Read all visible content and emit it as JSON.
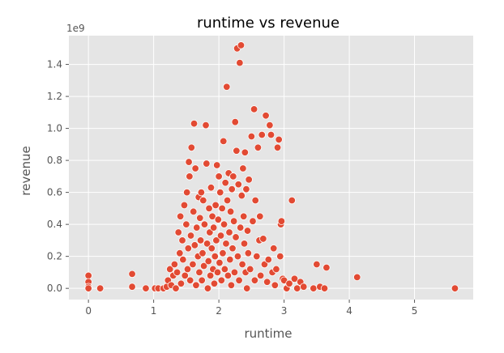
{
  "chart_data": {
    "type": "scatter",
    "title": "runtime vs revenue",
    "xlabel": "runtime",
    "ylabel": "revenue",
    "y_offset_label": "1e9",
    "xlim": [
      -0.3,
      5.9
    ],
    "ylim": [
      -0.07,
      1.58
    ],
    "xticks": [
      0,
      1,
      2,
      3,
      4,
      5
    ],
    "yticks": [
      0.0,
      0.2,
      0.4,
      0.6,
      0.8,
      1.0,
      1.2,
      1.4
    ],
    "ytick_labels": [
      "0.0",
      "0.2",
      "0.4",
      "0.6",
      "0.8",
      "1.0",
      "1.2",
      "1.4"
    ],
    "grid": true,
    "style": "ggplot",
    "colors": {
      "marker": "#E24A33",
      "marker_edge": "#ffffff",
      "panel": "#E5E5E5",
      "grid": "#ffffff"
    },
    "y_unit_multiplier": 1000000000,
    "points": [
      [
        0.0,
        0.08
      ],
      [
        0.0,
        0.04
      ],
      [
        0.0,
        0.01
      ],
      [
        0.0,
        0.0
      ],
      [
        0.18,
        0.0
      ],
      [
        0.67,
        0.09
      ],
      [
        0.67,
        0.01
      ],
      [
        0.88,
        0.0
      ],
      [
        1.02,
        0.0
      ],
      [
        1.07,
        0.0
      ],
      [
        1.15,
        0.0
      ],
      [
        1.2,
        0.01
      ],
      [
        1.22,
        0.05
      ],
      [
        1.25,
        0.12
      ],
      [
        1.27,
        0.02
      ],
      [
        1.3,
        0.08
      ],
      [
        1.32,
        0.15
      ],
      [
        1.34,
        0.0
      ],
      [
        1.36,
        0.1
      ],
      [
        1.38,
        0.35
      ],
      [
        1.4,
        0.22
      ],
      [
        1.41,
        0.45
      ],
      [
        1.42,
        0.03
      ],
      [
        1.44,
        0.3
      ],
      [
        1.45,
        0.18
      ],
      [
        1.47,
        0.52
      ],
      [
        1.48,
        0.08
      ],
      [
        1.5,
        0.4
      ],
      [
        1.51,
        0.6
      ],
      [
        1.52,
        0.12
      ],
      [
        1.53,
        0.25
      ],
      [
        1.54,
        0.79
      ],
      [
        1.55,
        0.7
      ],
      [
        1.56,
        0.05
      ],
      [
        1.57,
        0.33
      ],
      [
        1.58,
        0.88
      ],
      [
        1.6,
        0.15
      ],
      [
        1.61,
        0.48
      ],
      [
        1.62,
        1.03
      ],
      [
        1.63,
        0.27
      ],
      [
        1.64,
        0.75
      ],
      [
        1.65,
        0.02
      ],
      [
        1.66,
        0.38
      ],
      [
        1.68,
        0.2
      ],
      [
        1.69,
        0.57
      ],
      [
        1.7,
        0.1
      ],
      [
        1.71,
        0.44
      ],
      [
        1.72,
        0.3
      ],
      [
        1.73,
        0.6
      ],
      [
        1.74,
        0.05
      ],
      [
        1.75,
        0.22
      ],
      [
        1.76,
        0.55
      ],
      [
        1.77,
        0.14
      ],
      [
        1.78,
        0.4
      ],
      [
        1.8,
        1.02
      ],
      [
        1.81,
        0.78
      ],
      [
        1.82,
        0.28
      ],
      [
        1.83,
        0.0
      ],
      [
        1.84,
        0.17
      ],
      [
        1.85,
        0.5
      ],
      [
        1.86,
        0.35
      ],
      [
        1.87,
        0.08
      ],
      [
        1.88,
        0.63
      ],
      [
        1.89,
        0.25
      ],
      [
        1.9,
        0.45
      ],
      [
        1.91,
        0.12
      ],
      [
        1.92,
        0.38
      ],
      [
        1.93,
        0.03
      ],
      [
        1.94,
        0.2
      ],
      [
        1.95,
        0.52
      ],
      [
        1.96,
        0.3
      ],
      [
        1.97,
        0.77
      ],
      [
        1.98,
        0.1
      ],
      [
        1.99,
        0.43
      ],
      [
        2.0,
        0.7
      ],
      [
        2.01,
        0.16
      ],
      [
        2.02,
        0.6
      ],
      [
        2.03,
        0.33
      ],
      [
        2.04,
        0.05
      ],
      [
        2.05,
        0.5
      ],
      [
        2.06,
        0.22
      ],
      [
        2.07,
        0.92
      ],
      [
        2.08,
        0.4
      ],
      [
        2.09,
        0.12
      ],
      [
        2.1,
        0.66
      ],
      [
        2.11,
        0.28
      ],
      [
        2.12,
        1.26
      ],
      [
        2.13,
        0.55
      ],
      [
        2.14,
        0.08
      ],
      [
        2.15,
        0.72
      ],
      [
        2.16,
        0.35
      ],
      [
        2.17,
        0.18
      ],
      [
        2.18,
        0.48
      ],
      [
        2.19,
        0.02
      ],
      [
        2.2,
        0.62
      ],
      [
        2.21,
        0.25
      ],
      [
        2.22,
        0.7
      ],
      [
        2.23,
        0.42
      ],
      [
        2.24,
        0.1
      ],
      [
        2.25,
        1.04
      ],
      [
        2.26,
        0.32
      ],
      [
        2.27,
        0.86
      ],
      [
        2.28,
        1.5
      ],
      [
        2.29,
        0.2
      ],
      [
        2.3,
        0.65
      ],
      [
        2.31,
        0.05
      ],
      [
        2.32,
        1.41
      ],
      [
        2.33,
        0.38
      ],
      [
        2.34,
        1.52
      ],
      [
        2.35,
        0.58
      ],
      [
        2.36,
        0.15
      ],
      [
        2.37,
        0.75
      ],
      [
        2.38,
        0.45
      ],
      [
        2.39,
        0.28
      ],
      [
        2.4,
        0.85
      ],
      [
        2.41,
        0.1
      ],
      [
        2.42,
        0.62
      ],
      [
        2.43,
        0.0
      ],
      [
        2.44,
        0.36
      ],
      [
        2.45,
        0.22
      ],
      [
        2.46,
        0.68
      ],
      [
        2.48,
        0.12
      ],
      [
        2.5,
        0.95
      ],
      [
        2.52,
        0.42
      ],
      [
        2.54,
        1.12
      ],
      [
        2.55,
        0.05
      ],
      [
        2.56,
        0.55
      ],
      [
        2.58,
        0.2
      ],
      [
        2.6,
        0.88
      ],
      [
        2.62,
        0.3
      ],
      [
        2.63,
        0.45
      ],
      [
        2.64,
        0.08
      ],
      [
        2.66,
        0.96
      ],
      [
        2.68,
        0.31
      ],
      [
        2.7,
        0.15
      ],
      [
        2.72,
        1.08
      ],
      [
        2.74,
        0.04
      ],
      [
        2.76,
        0.18
      ],
      [
        2.78,
        1.02
      ],
      [
        2.8,
        0.96
      ],
      [
        2.82,
        0.1
      ],
      [
        2.84,
        0.25
      ],
      [
        2.86,
        0.02
      ],
      [
        2.88,
        0.12
      ],
      [
        2.9,
        0.88
      ],
      [
        2.92,
        0.93
      ],
      [
        2.94,
        0.2
      ],
      [
        2.95,
        0.4
      ],
      [
        2.96,
        0.42
      ],
      [
        2.98,
        0.06
      ],
      [
        3.0,
        0.05
      ],
      [
        3.04,
        0.0
      ],
      [
        3.08,
        0.03
      ],
      [
        3.12,
        0.55
      ],
      [
        3.16,
        0.06
      ],
      [
        3.2,
        0.0
      ],
      [
        3.25,
        0.04
      ],
      [
        3.3,
        0.01
      ],
      [
        3.45,
        0.0
      ],
      [
        3.5,
        0.15
      ],
      [
        3.55,
        0.01
      ],
      [
        3.62,
        0.0
      ],
      [
        3.65,
        0.13
      ],
      [
        4.12,
        0.07
      ],
      [
        5.62,
        0.0
      ]
    ]
  }
}
